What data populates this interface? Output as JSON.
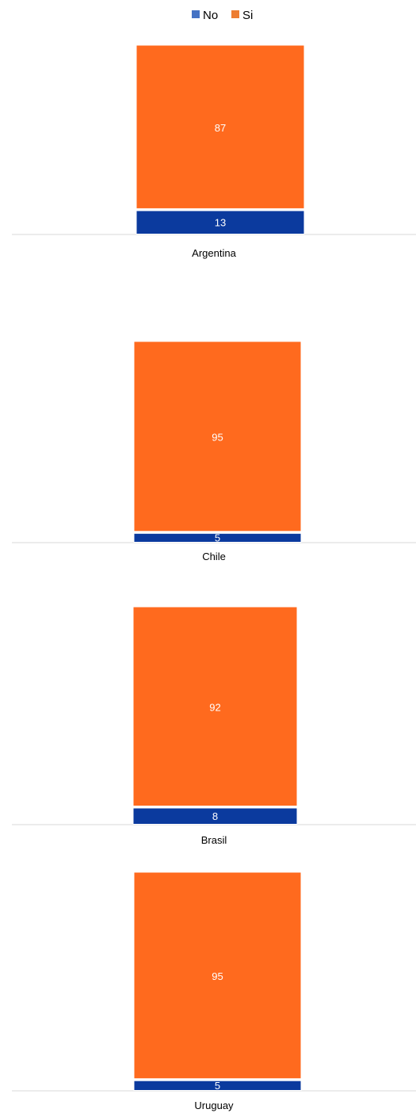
{
  "chart_data": {
    "type": "bar",
    "stacked": true,
    "percent_stacked": true,
    "legend": {
      "position": "top",
      "entries": [
        "No",
        "Si"
      ]
    },
    "categories": [
      "Argentina",
      "Chile",
      "Brasil",
      "Uruguay"
    ],
    "series": [
      {
        "name": "No",
        "values": [
          13,
          5,
          8,
          5
        ],
        "legend_color": "#4472C4",
        "bar_color": "#0B3A9E",
        "label_color": "#FFFFFF"
      },
      {
        "name": "Si",
        "values": [
          87,
          95,
          92,
          95
        ],
        "legend_color": "#ED7D31",
        "bar_color": "#FF6A1E",
        "label_color": "#FFFFFF"
      }
    ],
    "ylim": [
      0,
      100
    ],
    "grid": false,
    "title": "",
    "xlabel": "",
    "ylabel": ""
  }
}
